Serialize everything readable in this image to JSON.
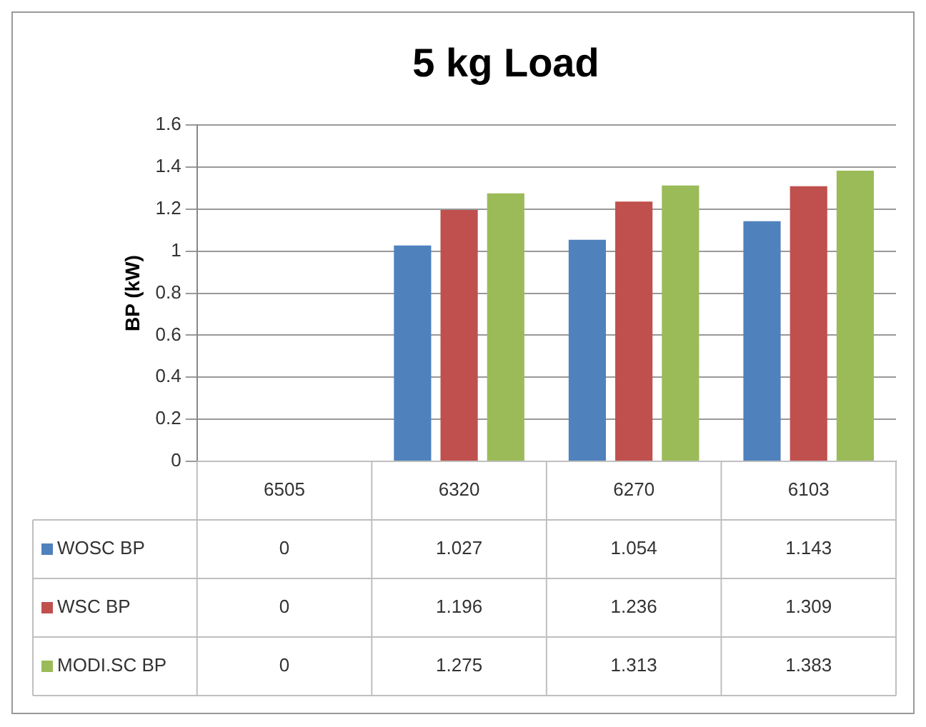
{
  "chart_data": {
    "type": "bar",
    "title": "5 kg Load",
    "ylabel": "BP (kW)",
    "categories": [
      "6505",
      "6320",
      "6270",
      "6103"
    ],
    "series": [
      {
        "name": "WOSC BP",
        "color": "#4f81bd",
        "values": [
          0,
          1.027,
          1.054,
          1.143
        ]
      },
      {
        "name": "WSC BP",
        "color": "#c0504d",
        "values": [
          0,
          1.196,
          1.236,
          1.309
        ]
      },
      {
        "name": "MODI.SC BP",
        "color": "#9bbb59",
        "values": [
          0,
          1.275,
          1.313,
          1.383
        ]
      }
    ],
    "ylim": [
      0,
      1.6
    ],
    "yticks": [
      0,
      0.2,
      0.4,
      0.6,
      0.8,
      1,
      1.2,
      1.4,
      1.6
    ],
    "grid": "y",
    "legend": "bottom",
    "data_labels": true
  }
}
